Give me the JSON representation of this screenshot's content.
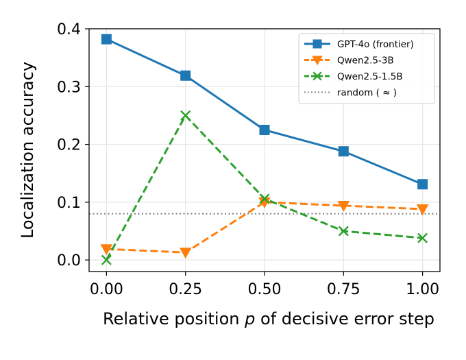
{
  "chart_data": {
    "type": "line",
    "xlabel_prefix": "Relative position ",
    "xlabel_var": "p",
    "xlabel_suffix": " of decisive error step",
    "ylabel": "Localization accuracy",
    "x": [
      0.0,
      0.25,
      0.5,
      0.75,
      1.0
    ],
    "x_tick_labels": [
      "0.00",
      "0.25",
      "0.50",
      "0.75",
      "1.00"
    ],
    "y_ticks": [
      0.0,
      0.1,
      0.2,
      0.3,
      0.4
    ],
    "y_tick_labels": [
      "0.0",
      "0.1",
      "0.2",
      "0.3",
      "0.4"
    ],
    "xlim": [
      -0.055,
      1.055
    ],
    "ylim": [
      -0.02,
      0.4
    ],
    "grid": true,
    "legend_position": "upper right",
    "series": [
      {
        "name": "GPT-4o (frontier)",
        "values": [
          0.382,
          0.319,
          0.225,
          0.188,
          0.131
        ],
        "color": "#1f77b4",
        "marker": "square",
        "linestyle": "solid"
      },
      {
        "name": "Qwen2.5-3B",
        "values": [
          0.019,
          0.013,
          0.1,
          0.094,
          0.088
        ],
        "color": "#ff7f0e",
        "marker": "triangle-down",
        "linestyle": "dashed"
      },
      {
        "name": "Qwen2.5-1.5B",
        "values": [
          0.0,
          0.25,
          0.106,
          0.05,
          0.038
        ],
        "color": "#2ca02c",
        "marker": "x",
        "linestyle": "dashed"
      }
    ],
    "reference_line": {
      "name": "random ( ≈ )",
      "value": 0.08,
      "color": "#808080",
      "linestyle": "dotted"
    }
  }
}
